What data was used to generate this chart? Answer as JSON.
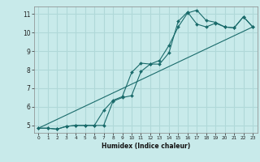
{
  "xlabel": "Humidex (Indice chaleur)",
  "bg_color": "#c8eaea",
  "line_color": "#1a6b6b",
  "grid_color": "#b0d8d8",
  "xlim": [
    -0.5,
    23.5
  ],
  "ylim": [
    4.6,
    11.4
  ],
  "xticks": [
    0,
    1,
    2,
    3,
    4,
    5,
    6,
    7,
    8,
    9,
    10,
    11,
    12,
    13,
    14,
    15,
    16,
    17,
    18,
    19,
    20,
    21,
    22,
    23
  ],
  "yticks": [
    5,
    6,
    7,
    8,
    9,
    10,
    11
  ],
  "line1_x": [
    0,
    1,
    2,
    3,
    4,
    5,
    6,
    7,
    8,
    9,
    10,
    11,
    12,
    13,
    14,
    15,
    16,
    17,
    18,
    19,
    20,
    21,
    22,
    23
  ],
  "line1_y": [
    4.85,
    4.85,
    4.8,
    4.95,
    5.0,
    5.0,
    5.0,
    5.0,
    6.3,
    6.5,
    6.6,
    7.9,
    8.3,
    8.3,
    8.9,
    10.6,
    11.1,
    10.45,
    10.3,
    10.5,
    10.3,
    10.25,
    10.85,
    10.3
  ],
  "line2_x": [
    0,
    1,
    2,
    3,
    4,
    5,
    6,
    7,
    8,
    9,
    10,
    11,
    12,
    13,
    14,
    15,
    16,
    17,
    18,
    19,
    20,
    21,
    22,
    23
  ],
  "line2_y": [
    4.85,
    4.85,
    4.8,
    4.95,
    5.0,
    5.0,
    5.0,
    5.8,
    6.35,
    6.55,
    7.85,
    8.35,
    8.3,
    8.5,
    9.3,
    10.3,
    11.05,
    11.2,
    10.65,
    10.55,
    10.3,
    10.25,
    10.85,
    10.3
  ],
  "line3_x": [
    0,
    23
  ],
  "line3_y": [
    4.85,
    10.3
  ]
}
